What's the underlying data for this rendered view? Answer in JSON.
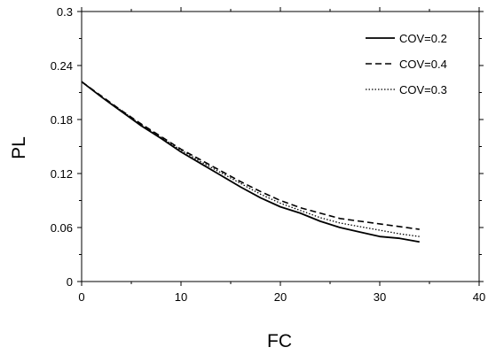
{
  "chart_data": {
    "type": "line",
    "xlabel": "FC",
    "ylabel": "PL",
    "xlim": [
      0,
      40
    ],
    "ylim": [
      0,
      0.3
    ],
    "x_ticks": [
      "0",
      "10",
      "20",
      "30",
      "40"
    ],
    "y_ticks": [
      "0",
      "0.06",
      "0.12",
      "0.18",
      "0.24",
      "0.3"
    ],
    "grid": false,
    "legend_position": "top-right",
    "x": [
      0,
      2,
      4,
      6,
      8,
      10,
      12,
      14,
      16,
      18,
      20,
      22,
      24,
      26,
      28,
      30,
      32,
      34
    ],
    "series": [
      {
        "name": "COV=0.2",
        "style": "solid",
        "color": "#000000",
        "values": [
          0.222,
          0.205,
          0.189,
          0.173,
          0.159,
          0.144,
          0.131,
          0.118,
          0.105,
          0.093,
          0.083,
          0.076,
          0.067,
          0.06,
          0.055,
          0.05,
          0.048,
          0.044
        ]
      },
      {
        "name": "COV=0.4",
        "style": "dashed",
        "color": "#000000",
        "values": [
          0.222,
          0.206,
          0.19,
          0.175,
          0.161,
          0.147,
          0.135,
          0.123,
          0.111,
          0.1,
          0.09,
          0.082,
          0.076,
          0.07,
          0.067,
          0.064,
          0.061,
          0.058
        ]
      },
      {
        "name": "COV=0.3",
        "style": "dotted",
        "color": "#000000",
        "values": [
          0.222,
          0.205,
          0.19,
          0.174,
          0.16,
          0.146,
          0.133,
          0.121,
          0.109,
          0.097,
          0.087,
          0.079,
          0.071,
          0.065,
          0.061,
          0.057,
          0.053,
          0.05
        ]
      }
    ]
  }
}
